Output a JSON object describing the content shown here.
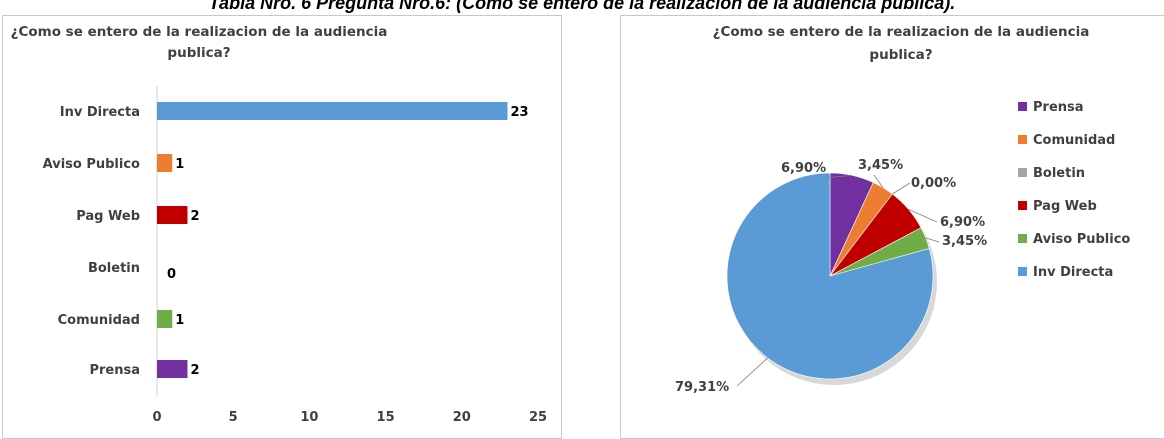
{
  "caption": "Tabla Nro. 6 Pregunta Nro.6: (Como se entero de la realización de la audiencia publica).",
  "chart_data": [
    {
      "type": "bar",
      "orientation": "horizontal",
      "title_lines": [
        "¿Como se entero de la realizacion de la audiencia",
        "publica?"
      ],
      "categories": [
        "Inv Directa",
        "Aviso Publico",
        "Pag Web",
        "Boletin",
        "Comunidad",
        "Prensa"
      ],
      "values": [
        23,
        1,
        2,
        0,
        1,
        2
      ],
      "colors": [
        "#5b9bd5",
        "#ed7d31",
        "#c00000",
        "#a5a5a5",
        "#70ad47",
        "#7030a0"
      ],
      "xlim": [
        0,
        25
      ],
      "xticks": [
        "0",
        "5",
        "10",
        "15",
        "20",
        "25"
      ],
      "grid": false,
      "legend": "none"
    },
    {
      "type": "pie",
      "title_lines": [
        "¿Como se entero de la realizacion de la audiencia",
        "publica?"
      ],
      "labels": [
        "Prensa",
        "Comunidad",
        "Boletin",
        "Pag Web",
        "Aviso Publico",
        "Inv Directa"
      ],
      "values": [
        6.9,
        3.45,
        0.0,
        6.9,
        3.45,
        79.31
      ],
      "value_labels": [
        "6,90%",
        "3,45%",
        "0,00%",
        "6,90%",
        "3,45%",
        "79,31%"
      ],
      "colors": [
        "#7030a0",
        "#ed7d31",
        "#a5a5a5",
        "#c00000",
        "#70ad47",
        "#5b9bd5"
      ],
      "legend": "right"
    }
  ]
}
